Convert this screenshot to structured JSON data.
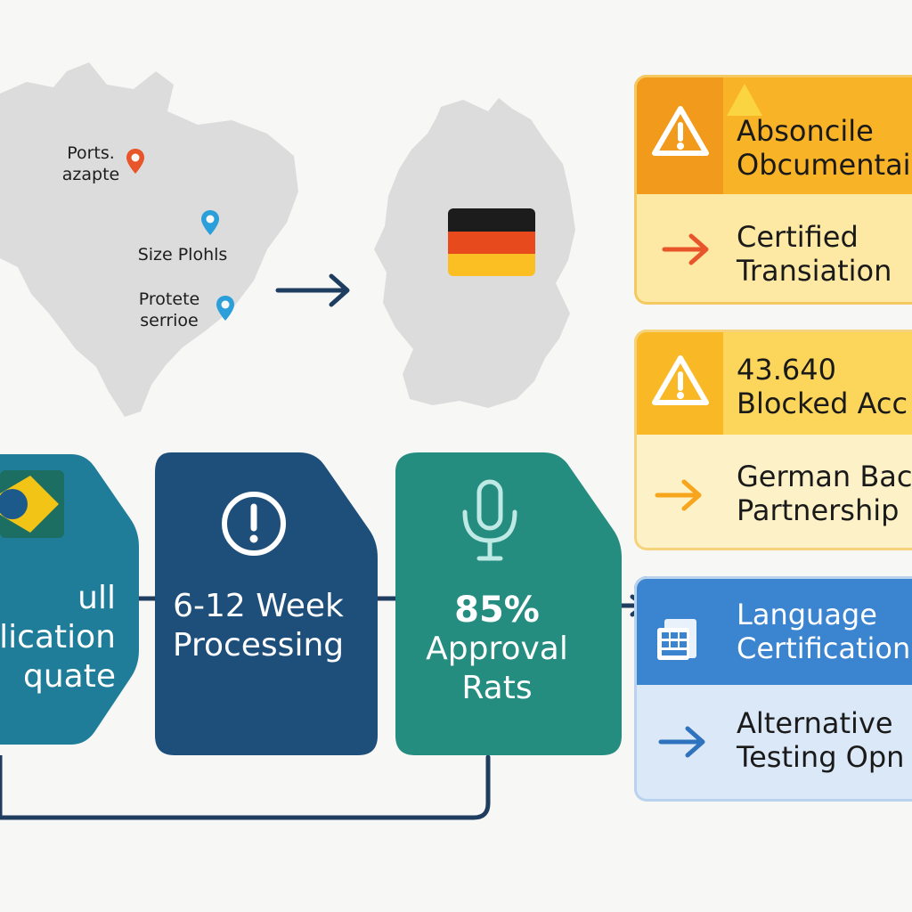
{
  "map": {
    "origin_labels": [
      {
        "line1": "Ports.",
        "line2": "azapte"
      },
      {
        "line1": "Size Plohls",
        "line2": ""
      },
      {
        "line1": "Protete",
        "line2": "serrioe"
      }
    ],
    "pin_colors": [
      "#e8552a",
      "#2b9fd9",
      "#2b9fd9"
    ],
    "destination_flag_colors": [
      "#1c1c1c",
      "#e74a1c",
      "#fbbf23"
    ]
  },
  "stages": [
    {
      "icon": "brazil-flag-icon",
      "line1": "ull",
      "line2": "lication",
      "line3": "quate",
      "color": "#1f7d99"
    },
    {
      "icon": "alert-circle-icon",
      "line1": "6-12 Week",
      "line2": "Processing",
      "color": "#1e4f7a"
    },
    {
      "icon": "microphone-icon",
      "line1": "85%",
      "line2": "Approval",
      "line3": "Rats",
      "color": "#258c80"
    }
  ],
  "cards": [
    {
      "header_icon": "warning-icon",
      "header_line1": "Absoncile",
      "header_line2": "Obcumentai",
      "body_icon": "arrow-right-icon",
      "body_line1": "Certified",
      "body_line2": "Transiation",
      "header_color": "#f29a1b",
      "body_color": "#fde9a4"
    },
    {
      "header_icon": "warning-icon",
      "header_line1": "43.640",
      "header_line2": "Blocked Acc",
      "body_icon": "arrow-right-icon",
      "body_line1": "German Bac",
      "body_line2": "Partnership",
      "header_color": "#f9b926",
      "body_color": "#fdf1c7"
    },
    {
      "header_icon": "document-grid-icon",
      "header_line1": "Language",
      "header_line2": "Certification",
      "body_icon": "arrow-right-icon",
      "body_line1": "Alternative",
      "body_line2": "Testing Opn",
      "header_color": "#3b84cf",
      "body_color": "#dbe8f7"
    }
  ]
}
